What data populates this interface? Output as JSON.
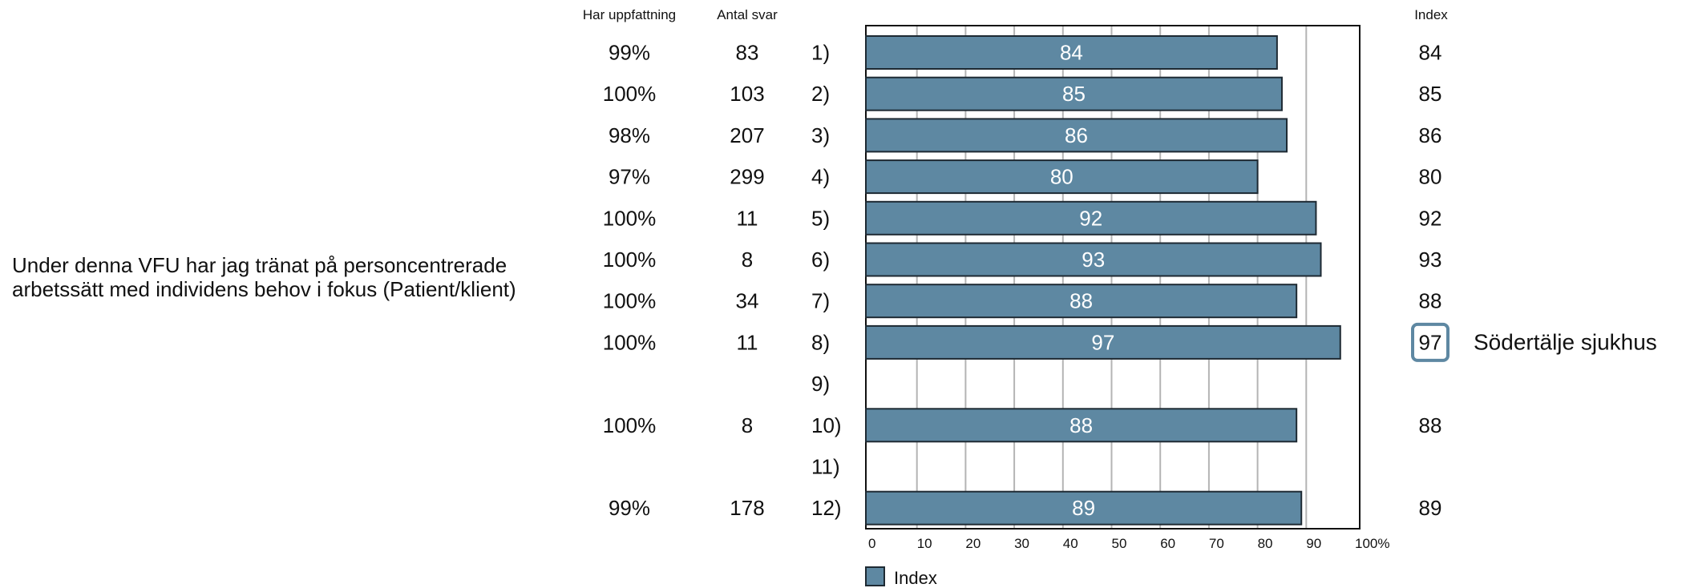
{
  "question": {
    "line1": "Under denna VFU har jag tränat på personcentrerade",
    "line2": "arbetssätt med individens behov i fokus (Patient/klient)"
  },
  "headers": {
    "uppfattning": "Har uppfattning",
    "antal": "Antal svar",
    "index": "Index"
  },
  "legend": {
    "label": "Index"
  },
  "highlight_label": "Södertälje sjukhus",
  "colors": {
    "bar_fill": "#5e88a2",
    "bar_stroke": "#1e2a33",
    "grid": "#b4b4b4",
    "highlight_border": "#5e88a2"
  },
  "chart_data": {
    "type": "bar",
    "orientation": "horizontal",
    "xlim": [
      0,
      100
    ],
    "xticks": [
      "0",
      "10",
      "20",
      "30",
      "40",
      "50",
      "60",
      "70",
      "80",
      "90",
      "100%"
    ],
    "grid": true,
    "legend_position": "bottom-left",
    "rows": [
      {
        "label": "1)",
        "uppfattning": "99%",
        "antal": "83",
        "value": 84,
        "value_label": "84",
        "index_label": "84"
      },
      {
        "label": "2)",
        "uppfattning": "100%",
        "antal": "103",
        "value": 85,
        "value_label": "85",
        "index_label": "85"
      },
      {
        "label": "3)",
        "uppfattning": "98%",
        "antal": "207",
        "value": 86,
        "value_label": "86",
        "index_label": "86"
      },
      {
        "label": "4)",
        "uppfattning": "97%",
        "antal": "299",
        "value": 80,
        "value_label": "80",
        "index_label": "80"
      },
      {
        "label": "5)",
        "uppfattning": "100%",
        "antal": "11",
        "value": 92,
        "value_label": "92",
        "index_label": "92"
      },
      {
        "label": "6)",
        "uppfattning": "100%",
        "antal": "8",
        "value": 93,
        "value_label": "93",
        "index_label": "93"
      },
      {
        "label": "7)",
        "uppfattning": "100%",
        "antal": "34",
        "value": 88,
        "value_label": "88",
        "index_label": "88"
      },
      {
        "label": "8)",
        "uppfattning": "100%",
        "antal": "11",
        "value": 97,
        "value_label": "97",
        "index_label": "97",
        "highlight": true
      },
      {
        "label": "9)",
        "uppfattning": "",
        "antal": "",
        "value": null,
        "value_label": "",
        "index_label": ""
      },
      {
        "label": "10)",
        "uppfattning": "100%",
        "antal": "8",
        "value": 88,
        "value_label": "88",
        "index_label": "88"
      },
      {
        "label": "11)",
        "uppfattning": "",
        "antal": "",
        "value": null,
        "value_label": "",
        "index_label": ""
      },
      {
        "label": "12)",
        "uppfattning": "99%",
        "antal": "178",
        "value": 89,
        "value_label": "89",
        "index_label": "89"
      }
    ]
  }
}
